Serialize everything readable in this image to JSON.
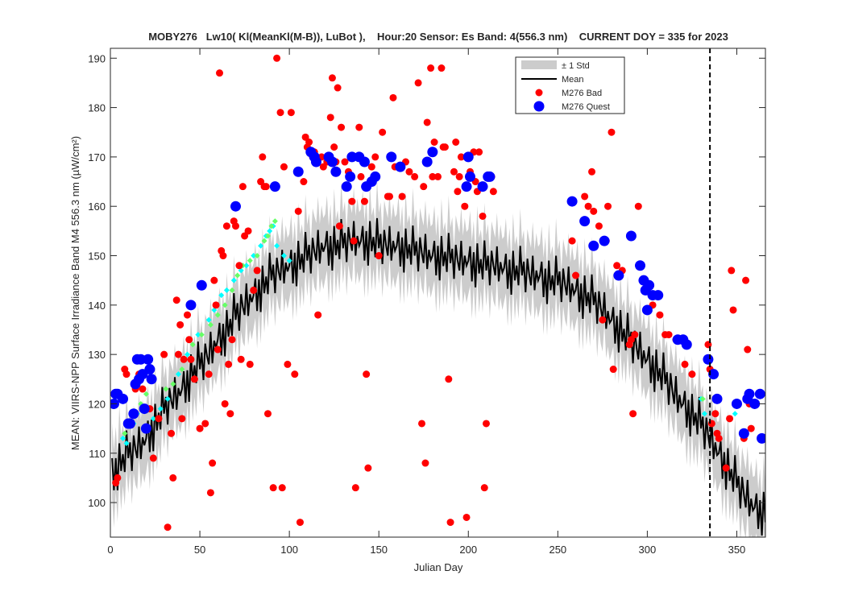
{
  "chart_data": {
    "type": "scatter",
    "title": "MOBY276   Lw10( Kl(MeanKl(M-B)), LuBot ),    Hour:20 Sensor: Es Band: 4(556.3 nm)    CURRENT DOY = 335 for 2023",
    "xlabel": "Julian Day",
    "ylabel": "MEAN: VIIRS-NPP Surface Irradiance Band M4 556.3 nm (µW/cm²)",
    "xlim": [
      0,
      366
    ],
    "ylim": [
      93,
      192
    ],
    "xticks": [
      0,
      50,
      100,
      150,
      200,
      250,
      300,
      350
    ],
    "yticks": [
      100,
      110,
      120,
      130,
      140,
      150,
      160,
      170,
      180,
      190
    ],
    "grid": false,
    "legend_position": "top-right",
    "current_doy": 335,
    "legend": [
      {
        "label": "± 1 Std",
        "kind": "band",
        "color": "#cccccc"
      },
      {
        "label": "Mean",
        "kind": "line",
        "color": "#000000"
      },
      {
        "label": "M276 Bad",
        "kind": "marker",
        "color": "#ff0000"
      },
      {
        "label": "M276 Quest",
        "kind": "marker",
        "color": "#0000ff"
      }
    ],
    "mean_anchors": [
      [
        1,
        106
      ],
      [
        5,
        108
      ],
      [
        10,
        110
      ],
      [
        15,
        111
      ],
      [
        20,
        113
      ],
      [
        25,
        116
      ],
      [
        30,
        119
      ],
      [
        35,
        121
      ],
      [
        40,
        123
      ],
      [
        45,
        126
      ],
      [
        50,
        128
      ],
      [
        55,
        130
      ],
      [
        60,
        133
      ],
      [
        65,
        135
      ],
      [
        70,
        138
      ],
      [
        75,
        140
      ],
      [
        80,
        142
      ],
      [
        85,
        144
      ],
      [
        90,
        146
      ],
      [
        95,
        147
      ],
      [
        100,
        148
      ],
      [
        105,
        149
      ],
      [
        110,
        150
      ],
      [
        115,
        151
      ],
      [
        120,
        152
      ],
      [
        125,
        152
      ],
      [
        130,
        152.5
      ],
      [
        135,
        153
      ],
      [
        140,
        153
      ],
      [
        145,
        153
      ],
      [
        150,
        152.5
      ],
      [
        155,
        152
      ],
      [
        160,
        152
      ],
      [
        165,
        151.5
      ],
      [
        170,
        151
      ],
      [
        175,
        150.5
      ],
      [
        180,
        150
      ],
      [
        185,
        150
      ],
      [
        190,
        149.5
      ],
      [
        195,
        149
      ],
      [
        200,
        149
      ],
      [
        205,
        148.5
      ],
      [
        210,
        148
      ],
      [
        215,
        148
      ],
      [
        220,
        147.5
      ],
      [
        225,
        147
      ],
      [
        230,
        147
      ],
      [
        235,
        146
      ],
      [
        240,
        146
      ],
      [
        245,
        145
      ],
      [
        250,
        145
      ],
      [
        255,
        144
      ],
      [
        260,
        143
      ],
      [
        265,
        142
      ],
      [
        270,
        141
      ],
      [
        275,
        139
      ],
      [
        280,
        137
      ],
      [
        285,
        135
      ],
      [
        290,
        133
      ],
      [
        295,
        131
      ],
      [
        300,
        129
      ],
      [
        305,
        127
      ],
      [
        310,
        125
      ],
      [
        315,
        122
      ],
      [
        320,
        120
      ],
      [
        325,
        118
      ],
      [
        330,
        116
      ],
      [
        335,
        113
      ],
      [
        340,
        110
      ],
      [
        345,
        107
      ],
      [
        350,
        104
      ],
      [
        355,
        101
      ],
      [
        360,
        99
      ],
      [
        366,
        98
      ]
    ],
    "mean_noise": [
      0,
      3,
      -4,
      2,
      -5,
      4,
      -2,
      1,
      -3,
      5,
      -1,
      2,
      -4,
      3,
      0,
      -2,
      4,
      -3,
      1,
      -1
    ],
    "std_halfwidth": 6,
    "bad_points": [
      [
        3,
        104
      ],
      [
        4,
        105
      ],
      [
        8,
        127
      ],
      [
        9,
        126
      ],
      [
        14,
        123
      ],
      [
        16,
        126
      ],
      [
        18,
        123
      ],
      [
        22,
        119
      ],
      [
        24,
        109
      ],
      [
        27,
        117
      ],
      [
        30,
        130
      ],
      [
        32,
        95
      ],
      [
        34,
        114
      ],
      [
        35,
        105
      ],
      [
        37,
        141
      ],
      [
        38,
        130
      ],
      [
        39,
        136
      ],
      [
        40,
        117
      ],
      [
        41,
        129
      ],
      [
        43,
        138
      ],
      [
        44,
        133
      ],
      [
        45,
        129
      ],
      [
        47,
        125
      ],
      [
        50,
        115
      ],
      [
        53,
        116
      ],
      [
        55,
        126
      ],
      [
        56,
        102
      ],
      [
        57,
        108
      ],
      [
        58,
        145
      ],
      [
        59,
        140
      ],
      [
        60,
        131
      ],
      [
        61,
        187
      ],
      [
        62,
        151
      ],
      [
        63,
        150
      ],
      [
        64,
        120
      ],
      [
        65,
        156
      ],
      [
        66,
        128
      ],
      [
        67,
        118
      ],
      [
        68,
        133
      ],
      [
        69,
        157
      ],
      [
        70,
        156
      ],
      [
        72,
        148
      ],
      [
        73,
        129
      ],
      [
        74,
        164
      ],
      [
        75,
        154
      ],
      [
        77,
        155
      ],
      [
        78,
        128
      ],
      [
        80,
        143
      ],
      [
        82,
        147
      ],
      [
        84,
        165
      ],
      [
        85,
        170
      ],
      [
        86,
        164
      ],
      [
        87,
        164
      ],
      [
        88,
        118
      ],
      [
        91,
        103
      ],
      [
        93,
        190
      ],
      [
        95,
        179
      ],
      [
        96,
        103
      ],
      [
        97,
        168
      ],
      [
        99,
        128
      ],
      [
        101,
        179
      ],
      [
        103,
        126
      ],
      [
        105,
        159
      ],
      [
        106,
        96
      ],
      [
        108,
        165
      ],
      [
        109,
        174
      ],
      [
        110,
        172
      ],
      [
        111,
        173
      ],
      [
        113,
        170
      ],
      [
        114,
        171
      ],
      [
        116,
        138
      ],
      [
        118,
        170
      ],
      [
        119,
        168
      ],
      [
        121,
        169
      ],
      [
        123,
        178
      ],
      [
        124,
        186
      ],
      [
        125,
        172
      ],
      [
        126,
        169
      ],
      [
        127,
        184
      ],
      [
        128,
        156
      ],
      [
        129,
        176
      ],
      [
        131,
        169
      ],
      [
        133,
        167
      ],
      [
        135,
        161
      ],
      [
        136,
        153
      ],
      [
        137,
        103
      ],
      [
        139,
        176
      ],
      [
        140,
        166
      ],
      [
        142,
        161
      ],
      [
        143,
        126
      ],
      [
        144,
        107
      ],
      [
        146,
        168
      ],
      [
        148,
        170
      ],
      [
        150,
        150
      ],
      [
        152,
        175
      ],
      [
        155,
        162
      ],
      [
        156,
        162
      ],
      [
        158,
        182
      ],
      [
        159,
        168
      ],
      [
        163,
        162
      ],
      [
        165,
        169
      ],
      [
        167,
        167
      ],
      [
        170,
        166
      ],
      [
        172,
        185
      ],
      [
        174,
        116
      ],
      [
        175,
        164
      ],
      [
        176,
        108
      ],
      [
        177,
        177
      ],
      [
        179,
        188
      ],
      [
        180,
        166
      ],
      [
        181,
        173
      ],
      [
        183,
        166
      ],
      [
        185,
        188
      ],
      [
        186,
        172
      ],
      [
        187,
        172
      ],
      [
        189,
        125
      ],
      [
        190,
        96
      ],
      [
        192,
        167
      ],
      [
        193,
        173
      ],
      [
        194,
        163
      ],
      [
        195,
        166
      ],
      [
        196,
        170
      ],
      [
        198,
        160
      ],
      [
        199,
        97
      ],
      [
        201,
        167
      ],
      [
        203,
        171
      ],
      [
        204,
        165
      ],
      [
        205,
        163
      ],
      [
        206,
        171
      ],
      [
        208,
        158
      ],
      [
        209,
        103
      ],
      [
        210,
        116
      ],
      [
        213,
        166
      ],
      [
        214,
        163
      ],
      [
        258,
        153
      ],
      [
        260,
        146
      ],
      [
        265,
        162
      ],
      [
        267,
        160
      ],
      [
        269,
        167
      ],
      [
        270,
        159
      ],
      [
        273,
        156
      ],
      [
        275,
        137
      ],
      [
        277,
        153
      ],
      [
        278,
        160
      ],
      [
        280,
        175
      ],
      [
        281,
        127
      ],
      [
        283,
        148
      ],
      [
        286,
        147
      ],
      [
        290,
        132
      ],
      [
        291,
        133
      ],
      [
        292,
        118
      ],
      [
        293,
        134
      ],
      [
        295,
        160
      ],
      [
        300,
        139
      ],
      [
        303,
        140
      ],
      [
        306,
        142
      ],
      [
        307,
        138
      ],
      [
        310,
        134
      ],
      [
        312,
        134
      ],
      [
        316,
        133
      ],
      [
        321,
        128
      ],
      [
        325,
        126
      ],
      [
        334,
        132
      ],
      [
        335,
        127
      ],
      [
        336,
        116
      ],
      [
        338,
        118
      ],
      [
        339,
        114
      ],
      [
        340,
        113
      ],
      [
        344,
        107
      ],
      [
        346,
        117
      ],
      [
        347,
        147
      ],
      [
        348,
        139
      ],
      [
        350,
        120
      ],
      [
        354,
        113
      ],
      [
        355,
        145
      ],
      [
        356,
        131
      ],
      [
        357,
        120
      ],
      [
        358,
        115
      ]
    ],
    "quest_points": [
      [
        2,
        120
      ],
      [
        3,
        122
      ],
      [
        4,
        122
      ],
      [
        7,
        121
      ],
      [
        10,
        116
      ],
      [
        11,
        116
      ],
      [
        13,
        118
      ],
      [
        14,
        124
      ],
      [
        15,
        129
      ],
      [
        16,
        125
      ],
      [
        17,
        129
      ],
      [
        18,
        126
      ],
      [
        19,
        119
      ],
      [
        20,
        115
      ],
      [
        21,
        129
      ],
      [
        22,
        127
      ],
      [
        23,
        125
      ],
      [
        45,
        140
      ],
      [
        51,
        144
      ],
      [
        70,
        160
      ],
      [
        92,
        164
      ],
      [
        105,
        167
      ],
      [
        112,
        171
      ],
      [
        114,
        170
      ],
      [
        115,
        169
      ],
      [
        122,
        170
      ],
      [
        124,
        169
      ],
      [
        126,
        167
      ],
      [
        132,
        164
      ],
      [
        134,
        166
      ],
      [
        135,
        170
      ],
      [
        139,
        170
      ],
      [
        142,
        169
      ],
      [
        143,
        164
      ],
      [
        146,
        165
      ],
      [
        148,
        166
      ],
      [
        157,
        170
      ],
      [
        162,
        168
      ],
      [
        177,
        169
      ],
      [
        180,
        171
      ],
      [
        199,
        164
      ],
      [
        200,
        170
      ],
      [
        201,
        166
      ],
      [
        208,
        164
      ],
      [
        211,
        166
      ],
      [
        212,
        166
      ],
      [
        258,
        161
      ],
      [
        265,
        157
      ],
      [
        270,
        152
      ],
      [
        276,
        153
      ],
      [
        284,
        146
      ],
      [
        291,
        154
      ],
      [
        296,
        148
      ],
      [
        298,
        145
      ],
      [
        299,
        143
      ],
      [
        300,
        139
      ],
      [
        301,
        144
      ],
      [
        303,
        142
      ],
      [
        306,
        142
      ],
      [
        317,
        133
      ],
      [
        320,
        133
      ],
      [
        322,
        132
      ],
      [
        334,
        129
      ],
      [
        337,
        126
      ],
      [
        339,
        121
      ],
      [
        350,
        120
      ],
      [
        354,
        114
      ],
      [
        356,
        121
      ],
      [
        357,
        122
      ],
      [
        360,
        120
      ],
      [
        363,
        122
      ],
      [
        364,
        113
      ]
    ],
    "cyan_points": [
      [
        7,
        113
      ],
      [
        9,
        112
      ],
      [
        13,
        116
      ],
      [
        15,
        118
      ],
      [
        24,
        117
      ],
      [
        28,
        119
      ],
      [
        32,
        121
      ],
      [
        38,
        126
      ],
      [
        43,
        130
      ],
      [
        49,
        134
      ],
      [
        55,
        137
      ],
      [
        58,
        139
      ],
      [
        62,
        142
      ],
      [
        65,
        143
      ],
      [
        69,
        145
      ],
      [
        73,
        147
      ],
      [
        76,
        148
      ],
      [
        80,
        150
      ],
      [
        84,
        152
      ],
      [
        87,
        154
      ],
      [
        89,
        155
      ],
      [
        91,
        156
      ],
      [
        93,
        152
      ],
      [
        97,
        150
      ],
      [
        100,
        149
      ],
      [
        330,
        121
      ],
      [
        332,
        118
      ],
      [
        349,
        118
      ]
    ],
    "green_points": [
      [
        8,
        114
      ],
      [
        12,
        116
      ],
      [
        17,
        120
      ],
      [
        20,
        122
      ],
      [
        26,
        117
      ],
      [
        31,
        123
      ],
      [
        35,
        124
      ],
      [
        40,
        127
      ],
      [
        46,
        132
      ],
      [
        51,
        134
      ],
      [
        56,
        136
      ],
      [
        60,
        138
      ],
      [
        64,
        140
      ],
      [
        68,
        143
      ],
      [
        71,
        146
      ],
      [
        74,
        148
      ],
      [
        78,
        149
      ],
      [
        82,
        150
      ],
      [
        86,
        153
      ],
      [
        88,
        154
      ],
      [
        90,
        156
      ],
      [
        92,
        157
      ],
      [
        331,
        121
      ]
    ]
  }
}
